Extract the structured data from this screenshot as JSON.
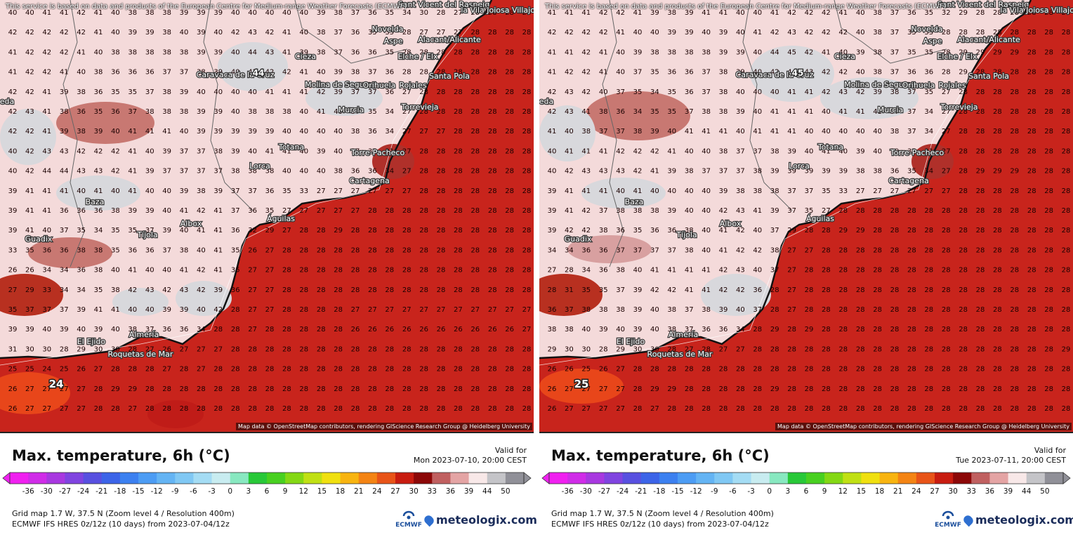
{
  "colors": {
    "sea_warm": "#c8241c",
    "sea_hot": "#b81612",
    "land_light": "#f4dada",
    "land_white": "#f8eeee",
    "land_grey": "#d4d4d8",
    "land_dark": "#b8564f",
    "accent_orange": "#e8461a"
  },
  "disclaimer": "This service is based on data and products of the European Centre for Medium-range Weather Forecasts (ECMWF)",
  "attribution": "Map data © OpenStreetMap contributors, rendering GIScience Research Group @ Heidelberg University",
  "cities": {
    "novelda": "Novelda",
    "sant_vicent": "Sant Vicent del Raspeig",
    "aspe": "Aspe",
    "alacant": "Alacant/Alicante",
    "villa_joiosa": "la Vila Joiosa Villajoyosa",
    "elche": "Elche / Elx",
    "santa_pola": "Santa Pola",
    "cieza": "Cieza",
    "caravaca": "Caravaca de la Cruz",
    "molina": "Molina de Segura",
    "orihuela": "Orihuela",
    "rojales": "Rojales",
    "murcia": "Murcia",
    "torrevieja": "Torrevieja",
    "totana": "Totana",
    "torre_pacheco": "Torre-Pacheco",
    "lorca": "Lorca",
    "cartagena": "Cartagena",
    "baza": "Baza",
    "aguilas": "Águilas",
    "albox": "Albox",
    "tijola": "Tíjola",
    "guadix": "Guadix",
    "almeria": "Almería",
    "el_ejido": "El Ejido",
    "roquetas": "Roquetas de Mar",
    "granada_edge": "eda"
  },
  "panels": [
    {
      "title": "Max. temperature, 6h (°C)",
      "valid_label": "Valid for",
      "valid_time": "Mon 2023-07-10, 20:00 CEST",
      "highlight_value": "24",
      "peak_value": "44",
      "grid_info": "Grid map 1.7 W, 37.5 N (Zoom level 4 / Resolution 400m)",
      "model_info": "ECMWF IFS HRES 0z/12z (10 days) from  2023-07-04/12z",
      "ecmwf": "ECMWF",
      "brand": "meteologix.com"
    },
    {
      "title": "Max. temperature, 6h (°C)",
      "valid_label": "Valid for",
      "valid_time": "Tue 2023-07-11, 20:00 CEST",
      "highlight_value": "25",
      "peak_value": "45",
      "grid_info": "Grid map 1.7 W, 37.5 N (Zoom level 4 / Resolution 400m)",
      "model_info": "ECMWF IFS HRES 0z/12z (10 days) from  2023-07-04/12z",
      "ecmwf": "ECMWF",
      "brand": "meteologix.com"
    }
  ],
  "colorbar": {
    "ticks": [
      "-36",
      "-30",
      "-27",
      "-24",
      "-21",
      "-18",
      "-15",
      "-12",
      "-9",
      "-6",
      "-3",
      "0",
      "3",
      "6",
      "9",
      "12",
      "15",
      "18",
      "21",
      "24",
      "27",
      "30",
      "33",
      "36",
      "39",
      "44",
      "50"
    ],
    "colors": [
      "#f020f0",
      "#d02ce8",
      "#a838e0",
      "#8044e0",
      "#5850e0",
      "#3c64e8",
      "#3c80f0",
      "#4c9cf4",
      "#64b4f4",
      "#80c8f4",
      "#a4dcf4",
      "#c8ecf0",
      "#88e8c0",
      "#28c838",
      "#48d020",
      "#84d814",
      "#c0e014",
      "#f0e010",
      "#f8b410",
      "#f48414",
      "#e85418",
      "#c81c10",
      "#8c0808",
      "#c06060",
      "#e4a4a4",
      "#f8e8e8",
      "#c4c4c8",
      "#909098"
    ]
  },
  "grid_numbers_left": [
    [
      "40",
      "40",
      "41",
      "41",
      "42",
      "41",
      "40",
      "38",
      "38",
      "38",
      "39",
      "39",
      "39",
      "40",
      "40",
      "40",
      "40",
      "40",
      "39",
      "38",
      "37",
      "36",
      "35",
      "34",
      "30",
      "28",
      "27",
      "28",
      "28",
      "28",
      "28"
    ],
    [
      "42",
      "42",
      "42",
      "42",
      "42",
      "41",
      "40",
      "39",
      "39",
      "38",
      "40",
      "39",
      "40",
      "42",
      "43",
      "42",
      "41",
      "40",
      "38",
      "37",
      "36",
      "35",
      "35",
      "28",
      "27",
      "27",
      "27",
      "28",
      "28",
      "28",
      "28"
    ],
    [
      "41",
      "42",
      "42",
      "42",
      "41",
      "40",
      "38",
      "38",
      "38",
      "38",
      "38",
      "39",
      "39",
      "40",
      "44",
      "43",
      "41",
      "39",
      "38",
      "37",
      "36",
      "36",
      "35",
      "28",
      "28",
      "28",
      "28",
      "28",
      "28",
      "28",
      "28"
    ],
    [
      "41",
      "42",
      "42",
      "41",
      "40",
      "38",
      "36",
      "36",
      "36",
      "37",
      "37",
      "38",
      "39",
      "40",
      "42",
      "42",
      "42",
      "41",
      "40",
      "39",
      "38",
      "37",
      "36",
      "28",
      "28",
      "28",
      "28",
      "28",
      "28",
      "28",
      "28"
    ],
    [
      "42",
      "42",
      "41",
      "39",
      "38",
      "36",
      "35",
      "35",
      "37",
      "38",
      "39",
      "40",
      "40",
      "40",
      "40",
      "41",
      "41",
      "41",
      "42",
      "39",
      "37",
      "37",
      "36",
      "27",
      "28",
      "28",
      "28",
      "28",
      "28",
      "28",
      "28"
    ],
    [
      "42",
      "43",
      "41",
      "38",
      "36",
      "35",
      "36",
      "37",
      "38",
      "38",
      "38",
      "39",
      "39",
      "40",
      "38",
      "38",
      "38",
      "40",
      "41",
      "40",
      "37",
      "35",
      "34",
      "27",
      "28",
      "28",
      "28",
      "28",
      "28",
      "28",
      "28"
    ],
    [
      "42",
      "42",
      "41",
      "39",
      "38",
      "39",
      "40",
      "41",
      "41",
      "41",
      "40",
      "39",
      "39",
      "39",
      "39",
      "39",
      "40",
      "40",
      "40",
      "40",
      "38",
      "36",
      "34",
      "27",
      "27",
      "27",
      "28",
      "28",
      "28",
      "28",
      "28"
    ],
    [
      "40",
      "42",
      "43",
      "43",
      "42",
      "42",
      "42",
      "41",
      "40",
      "39",
      "37",
      "37",
      "38",
      "39",
      "40",
      "41",
      "41",
      "40",
      "39",
      "40",
      "37",
      "35",
      "31",
      "27",
      "28",
      "28",
      "28",
      "28",
      "28",
      "28",
      "28"
    ],
    [
      "40",
      "42",
      "44",
      "44",
      "43",
      "43",
      "42",
      "41",
      "39",
      "37",
      "37",
      "37",
      "37",
      "38",
      "38",
      "38",
      "40",
      "40",
      "40",
      "38",
      "36",
      "36",
      "34",
      "27",
      "28",
      "28",
      "28",
      "28",
      "28",
      "28",
      "28"
    ],
    [
      "39",
      "41",
      "41",
      "41",
      "40",
      "41",
      "40",
      "41",
      "40",
      "40",
      "39",
      "38",
      "39",
      "37",
      "37",
      "36",
      "35",
      "33",
      "27",
      "27",
      "27",
      "27",
      "27",
      "27",
      "28",
      "28",
      "28",
      "28",
      "28",
      "28",
      "28"
    ],
    [
      "39",
      "41",
      "41",
      "36",
      "36",
      "36",
      "38",
      "39",
      "39",
      "40",
      "41",
      "42",
      "41",
      "37",
      "36",
      "35",
      "27",
      "27",
      "27",
      "27",
      "27",
      "28",
      "28",
      "28",
      "28",
      "28",
      "28",
      "28",
      "28",
      "28",
      "28"
    ],
    [
      "39",
      "41",
      "40",
      "37",
      "35",
      "34",
      "35",
      "35",
      "37",
      "39",
      "40",
      "41",
      "41",
      "36",
      "32",
      "29",
      "27",
      "28",
      "28",
      "29",
      "28",
      "28",
      "28",
      "28",
      "28",
      "28",
      "28",
      "28",
      "28",
      "28",
      "28"
    ],
    [
      "33",
      "35",
      "36",
      "36",
      "38",
      "38",
      "35",
      "36",
      "36",
      "37",
      "38",
      "40",
      "41",
      "35",
      "26",
      "27",
      "28",
      "28",
      "28",
      "28",
      "28",
      "28",
      "28",
      "28",
      "28",
      "28",
      "28",
      "28",
      "28",
      "28",
      "28"
    ],
    [
      "26",
      "26",
      "34",
      "34",
      "36",
      "38",
      "40",
      "41",
      "40",
      "40",
      "41",
      "42",
      "41",
      "35",
      "27",
      "27",
      "28",
      "28",
      "28",
      "28",
      "28",
      "28",
      "28",
      "28",
      "28",
      "28",
      "28",
      "28",
      "28",
      "28",
      "28"
    ],
    [
      "27",
      "29",
      "33",
      "34",
      "34",
      "35",
      "38",
      "42",
      "43",
      "42",
      "43",
      "42",
      "39",
      "36",
      "27",
      "27",
      "28",
      "28",
      "28",
      "28",
      "28",
      "28",
      "28",
      "28",
      "28",
      "28",
      "28",
      "28",
      "28",
      "28",
      "28"
    ],
    [
      "35",
      "37",
      "37",
      "37",
      "39",
      "41",
      "41",
      "40",
      "40",
      "39",
      "39",
      "40",
      "42",
      "28",
      "27",
      "27",
      "28",
      "28",
      "28",
      "28",
      "27",
      "27",
      "27",
      "27",
      "27",
      "27",
      "27",
      "27",
      "27",
      "27",
      "27"
    ],
    [
      "39",
      "39",
      "40",
      "39",
      "40",
      "39",
      "40",
      "38",
      "37",
      "36",
      "36",
      "34",
      "28",
      "28",
      "27",
      "28",
      "28",
      "28",
      "28",
      "28",
      "26",
      "26",
      "26",
      "26",
      "26",
      "26",
      "26",
      "26",
      "26",
      "26",
      "27"
    ],
    [
      "31",
      "30",
      "30",
      "28",
      "29",
      "30",
      "30",
      "28",
      "27",
      "26",
      "27",
      "27",
      "27",
      "28",
      "28",
      "28",
      "28",
      "28",
      "28",
      "28",
      "28",
      "28",
      "28",
      "28",
      "28",
      "28",
      "28",
      "28",
      "28",
      "28",
      "28"
    ],
    [
      "25",
      "25",
      "24",
      "25",
      "26",
      "27",
      "28",
      "28",
      "28",
      "27",
      "28",
      "27",
      "28",
      "28",
      "28",
      "28",
      "28",
      "28",
      "28",
      "28",
      "28",
      "28",
      "28",
      "28",
      "28",
      "28",
      "28",
      "28",
      "28",
      "28",
      "28"
    ],
    [
      "26",
      "27",
      "27",
      "27",
      "27",
      "28",
      "29",
      "29",
      "28",
      "28",
      "28",
      "28",
      "28",
      "28",
      "28",
      "28",
      "28",
      "28",
      "28",
      "28",
      "28",
      "28",
      "28",
      "28",
      "28",
      "28",
      "28",
      "28",
      "28",
      "28",
      "28"
    ],
    [
      "26",
      "27",
      "27",
      "27",
      "27",
      "28",
      "28",
      "27",
      "28",
      "28",
      "28",
      "28",
      "28",
      "28",
      "28",
      "28",
      "28",
      "28",
      "28",
      "28",
      "28",
      "28",
      "28",
      "28",
      "28",
      "28",
      "28",
      "28",
      "28",
      "28",
      "28"
    ]
  ],
  "grid_numbers_right": [
    [
      "41",
      "41",
      "41",
      "42",
      "42",
      "41",
      "39",
      "38",
      "39",
      "41",
      "41",
      "40",
      "40",
      "41",
      "42",
      "42",
      "42",
      "41",
      "40",
      "38",
      "37",
      "36",
      "35",
      "32",
      "29",
      "28",
      "28",
      "28",
      "28",
      "28",
      "28"
    ],
    [
      "42",
      "42",
      "42",
      "42",
      "41",
      "40",
      "40",
      "39",
      "39",
      "40",
      "39",
      "40",
      "41",
      "42",
      "43",
      "42",
      "42",
      "42",
      "40",
      "38",
      "37",
      "35",
      "33",
      "28",
      "28",
      "28",
      "28",
      "28",
      "28",
      "28",
      "28"
    ],
    [
      "41",
      "41",
      "42",
      "41",
      "40",
      "39",
      "38",
      "38",
      "38",
      "38",
      "39",
      "39",
      "40",
      "44",
      "45",
      "42",
      "41",
      "40",
      "39",
      "38",
      "37",
      "35",
      "35",
      "28",
      "29",
      "29",
      "29",
      "29",
      "28",
      "28",
      "28"
    ],
    [
      "41",
      "42",
      "42",
      "41",
      "40",
      "37",
      "35",
      "36",
      "36",
      "37",
      "38",
      "39",
      "40",
      "42",
      "44",
      "43",
      "42",
      "42",
      "40",
      "38",
      "37",
      "36",
      "36",
      "28",
      "29",
      "28",
      "28",
      "28",
      "28",
      "28",
      "28"
    ],
    [
      "42",
      "43",
      "42",
      "40",
      "37",
      "35",
      "34",
      "35",
      "36",
      "37",
      "38",
      "40",
      "40",
      "40",
      "41",
      "41",
      "42",
      "43",
      "42",
      "39",
      "38",
      "37",
      "35",
      "27",
      "28",
      "28",
      "28",
      "28",
      "28",
      "28",
      "28"
    ],
    [
      "42",
      "43",
      "41",
      "38",
      "36",
      "34",
      "35",
      "35",
      "37",
      "38",
      "38",
      "39",
      "40",
      "41",
      "41",
      "41",
      "40",
      "41",
      "41",
      "41",
      "37",
      "37",
      "34",
      "27",
      "28",
      "28",
      "28",
      "28",
      "28",
      "28",
      "28"
    ],
    [
      "41",
      "40",
      "38",
      "37",
      "37",
      "38",
      "39",
      "40",
      "41",
      "41",
      "41",
      "40",
      "41",
      "41",
      "41",
      "40",
      "40",
      "40",
      "40",
      "40",
      "38",
      "37",
      "34",
      "27",
      "28",
      "28",
      "28",
      "28",
      "28",
      "28",
      "28"
    ],
    [
      "40",
      "41",
      "41",
      "41",
      "42",
      "42",
      "42",
      "41",
      "40",
      "40",
      "38",
      "37",
      "37",
      "38",
      "39",
      "40",
      "41",
      "40",
      "39",
      "40",
      "39",
      "35",
      "31",
      "27",
      "28",
      "28",
      "28",
      "28",
      "28",
      "28",
      "28"
    ],
    [
      "40",
      "42",
      "43",
      "43",
      "43",
      "42",
      "41",
      "39",
      "38",
      "37",
      "37",
      "37",
      "38",
      "39",
      "39",
      "39",
      "39",
      "39",
      "38",
      "38",
      "36",
      "35",
      "34",
      "27",
      "28",
      "29",
      "29",
      "29",
      "28",
      "28",
      "28"
    ],
    [
      "39",
      "41",
      "41",
      "41",
      "40",
      "41",
      "40",
      "40",
      "40",
      "40",
      "39",
      "38",
      "38",
      "38",
      "37",
      "37",
      "35",
      "33",
      "27",
      "27",
      "27",
      "27",
      "27",
      "27",
      "28",
      "28",
      "28",
      "28",
      "28",
      "28",
      "28"
    ],
    [
      "39",
      "41",
      "42",
      "37",
      "38",
      "38",
      "38",
      "39",
      "40",
      "40",
      "42",
      "43",
      "41",
      "39",
      "37",
      "35",
      "27",
      "28",
      "28",
      "28",
      "28",
      "28",
      "28",
      "28",
      "28",
      "28",
      "28",
      "28",
      "28",
      "28",
      "28"
    ],
    [
      "39",
      "42",
      "42",
      "38",
      "36",
      "35",
      "36",
      "36",
      "38",
      "40",
      "41",
      "42",
      "40",
      "37",
      "29",
      "28",
      "28",
      "29",
      "29",
      "28",
      "28",
      "28",
      "28",
      "28",
      "28",
      "28",
      "28",
      "28",
      "28",
      "28",
      "28"
    ],
    [
      "34",
      "34",
      "36",
      "36",
      "37",
      "37",
      "37",
      "37",
      "38",
      "40",
      "41",
      "42",
      "42",
      "38",
      "27",
      "27",
      "28",
      "28",
      "28",
      "28",
      "28",
      "28",
      "28",
      "28",
      "28",
      "28",
      "28",
      "28",
      "28",
      "28",
      "28"
    ],
    [
      "27",
      "28",
      "34",
      "36",
      "38",
      "40",
      "41",
      "41",
      "41",
      "41",
      "42",
      "43",
      "40",
      "37",
      "27",
      "28",
      "28",
      "28",
      "28",
      "28",
      "28",
      "28",
      "28",
      "28",
      "28",
      "28",
      "28",
      "28",
      "28",
      "28",
      "28"
    ],
    [
      "28",
      "31",
      "35",
      "35",
      "37",
      "39",
      "42",
      "42",
      "41",
      "41",
      "42",
      "42",
      "36",
      "28",
      "27",
      "28",
      "28",
      "28",
      "28",
      "28",
      "28",
      "28",
      "28",
      "28",
      "28",
      "28",
      "28",
      "28",
      "28",
      "28",
      "28"
    ],
    [
      "36",
      "37",
      "38",
      "38",
      "38",
      "39",
      "40",
      "38",
      "37",
      "38",
      "39",
      "40",
      "37",
      "28",
      "27",
      "28",
      "28",
      "28",
      "28",
      "28",
      "28",
      "28",
      "28",
      "28",
      "28",
      "28",
      "28",
      "28",
      "28",
      "28",
      "28"
    ],
    [
      "38",
      "38",
      "40",
      "39",
      "40",
      "39",
      "40",
      "38",
      "37",
      "36",
      "36",
      "34",
      "28",
      "29",
      "28",
      "29",
      "28",
      "28",
      "28",
      "28",
      "28",
      "28",
      "28",
      "28",
      "28",
      "28",
      "28",
      "28",
      "28",
      "28",
      "28"
    ],
    [
      "29",
      "30",
      "30",
      "28",
      "29",
      "30",
      "30",
      "28",
      "27",
      "28",
      "27",
      "27",
      "28",
      "28",
      "28",
      "28",
      "28",
      "28",
      "28",
      "28",
      "28",
      "28",
      "28",
      "28",
      "28",
      "28",
      "28",
      "28",
      "28",
      "28",
      "29"
    ],
    [
      "26",
      "26",
      "25",
      "26",
      "27",
      "28",
      "28",
      "28",
      "28",
      "28",
      "28",
      "28",
      "28",
      "28",
      "28",
      "28",
      "28",
      "28",
      "28",
      "28",
      "28",
      "28",
      "28",
      "28",
      "28",
      "28",
      "28",
      "28",
      "28",
      "28",
      "28"
    ],
    [
      "26",
      "27",
      "27",
      "27",
      "27",
      "28",
      "29",
      "29",
      "28",
      "28",
      "28",
      "28",
      "28",
      "29",
      "28",
      "28",
      "28",
      "28",
      "28",
      "28",
      "28",
      "28",
      "28",
      "28",
      "28",
      "28",
      "28",
      "28",
      "28",
      "28",
      "28"
    ],
    [
      "26",
      "27",
      "27",
      "27",
      "27",
      "28",
      "27",
      "28",
      "28",
      "28",
      "28",
      "28",
      "28",
      "28",
      "28",
      "28",
      "28",
      "28",
      "28",
      "28",
      "28",
      "28",
      "28",
      "28",
      "28",
      "28",
      "28",
      "28",
      "28",
      "28",
      "28"
    ]
  ]
}
